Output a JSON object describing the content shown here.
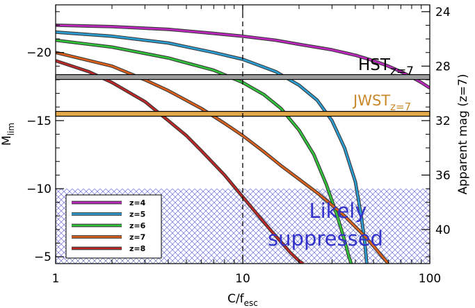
{
  "chart_data": {
    "type": "line",
    "x_scale": "log",
    "xlim": [
      1,
      100
    ],
    "ylim": [
      -23.5,
      -4.5
    ],
    "y_inverted": true,
    "x_ticks": [
      1,
      10,
      100
    ],
    "x_tick_labels": [
      "1",
      "10",
      "100"
    ],
    "y_ticks": [
      -20,
      -15,
      -10,
      -5
    ],
    "y_tick_labels": [
      "−20",
      "−15",
      "−10",
      "−5"
    ],
    "xlabel_main": "C/f",
    "xlabel_sub": "esc",
    "ylabel_main": "M",
    "ylabel_sub": "lim",
    "ylabel_right": "Apparent mag (z=7)",
    "y2_ticks": [
      24,
      28,
      32,
      36,
      40
    ],
    "y2_tick_labels": [
      "24",
      "28",
      "32",
      "36",
      "40"
    ],
    "y2_offset_to_mag": 47.0,
    "vline_x": 10,
    "hlines": [
      {
        "name": "HST",
        "sub": "z=7",
        "y": -18.2,
        "color": "#9e9e9e"
      },
      {
        "name": "JWST",
        "sub": "z=7",
        "y": -15.5,
        "color": "#e2a84a"
      }
    ],
    "suppressed_region": {
      "y_from": -10,
      "label_line1": "Likely",
      "label_line2": "suppressed",
      "color": "#3333cc"
    },
    "series": [
      {
        "name": "z=4",
        "color": "#c026c0",
        "x": [
          1,
          2,
          4,
          7,
          10,
          15,
          20,
          30,
          40,
          50,
          60,
          70,
          80,
          90,
          100
        ],
        "y": [
          -22.0,
          -21.9,
          -21.7,
          -21.4,
          -21.2,
          -20.9,
          -20.6,
          -20.2,
          -19.8,
          -19.4,
          -19.0,
          -18.6,
          -18.2,
          -17.8,
          -17.4
        ]
      },
      {
        "name": "z=5",
        "color": "#2a9fd6",
        "x": [
          1,
          2,
          4,
          7,
          10,
          15,
          20,
          25,
          30,
          35,
          40,
          43,
          45,
          46
        ],
        "y": [
          -21.5,
          -21.2,
          -20.7,
          -20.0,
          -19.5,
          -18.6,
          -17.6,
          -16.5,
          -15.0,
          -13.0,
          -10.5,
          -8.0,
          -6.0,
          -4.5
        ]
      },
      {
        "name": "z=6",
        "color": "#2fc63a",
        "x": [
          1,
          2,
          4,
          7,
          10,
          13,
          16,
          20,
          24,
          28,
          32,
          35,
          37,
          38
        ],
        "y": [
          -20.9,
          -20.4,
          -19.6,
          -18.7,
          -17.8,
          -16.9,
          -15.9,
          -14.3,
          -12.5,
          -10.3,
          -8.0,
          -6.2,
          -5.0,
          -4.5
        ]
      },
      {
        "name": "z=7",
        "color": "#e0601a",
        "x": [
          1,
          2,
          3,
          4,
          6,
          8,
          10,
          13,
          16,
          20,
          25,
          30,
          35,
          40,
          45,
          50,
          55,
          60
        ],
        "y": [
          -20.0,
          -19.0,
          -18.0,
          -17.2,
          -15.9,
          -14.8,
          -13.9,
          -12.7,
          -11.7,
          -10.7,
          -9.7,
          -8.8,
          -8.0,
          -7.2,
          -6.5,
          -5.8,
          -5.1,
          -4.5
        ]
      },
      {
        "name": "z=8",
        "color": "#c02626",
        "x": [
          1,
          1.5,
          2,
          3,
          4,
          5,
          6,
          8,
          10,
          12,
          14,
          16,
          18,
          20,
          21
        ],
        "y": [
          -19.4,
          -18.6,
          -17.8,
          -16.4,
          -15.0,
          -13.9,
          -12.8,
          -11.0,
          -9.4,
          -8.1,
          -7.0,
          -6.1,
          -5.3,
          -4.7,
          -4.5
        ]
      }
    ]
  }
}
